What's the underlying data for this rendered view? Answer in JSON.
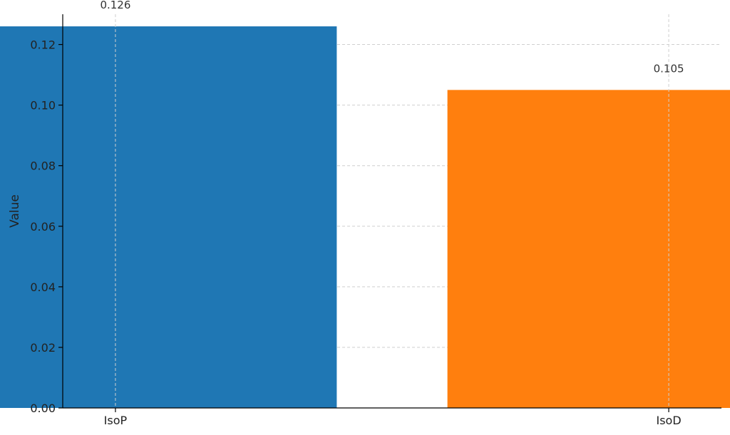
{
  "chart_data": {
    "type": "bar",
    "title": "",
    "xlabel": "",
    "ylabel": "Value",
    "categories": [
      "IsoP",
      "IsoD"
    ],
    "values": [
      0.126,
      0.105
    ],
    "data_labels": [
      "0.126",
      "0.105"
    ],
    "colors": [
      "#1f77b4",
      "#ff7f0e"
    ],
    "ylim": [
      0,
      0.13
    ],
    "yticks": [
      0.0,
      0.02,
      0.04,
      0.06,
      0.08,
      0.1,
      0.12
    ],
    "ytick_labels": [
      "0.00",
      "0.02",
      "0.04",
      "0.06",
      "0.08",
      "0.10",
      "0.12"
    ],
    "grid": true,
    "legend": "none"
  }
}
